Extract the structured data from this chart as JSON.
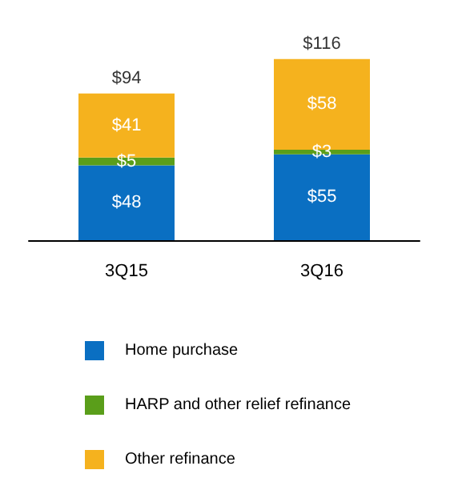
{
  "chart_data": {
    "type": "bar",
    "stacked": true,
    "categories": [
      "3Q15",
      "3Q16"
    ],
    "series": [
      {
        "name": "Home purchase",
        "color": "#0a6fc2",
        "values": [
          48,
          55
        ],
        "value_labels": [
          "$48",
          "$55"
        ]
      },
      {
        "name": "HARP and other relief refinance",
        "color": "#5a9e1a",
        "values": [
          5,
          3
        ],
        "value_labels": [
          "$5",
          "$3"
        ]
      },
      {
        "name": "Other refinance",
        "color": "#f5b21e",
        "values": [
          41,
          58
        ],
        "value_labels": [
          "$41",
          "$58"
        ]
      }
    ],
    "totals": [
      "$94",
      "$116"
    ],
    "legend": "bottom"
  }
}
